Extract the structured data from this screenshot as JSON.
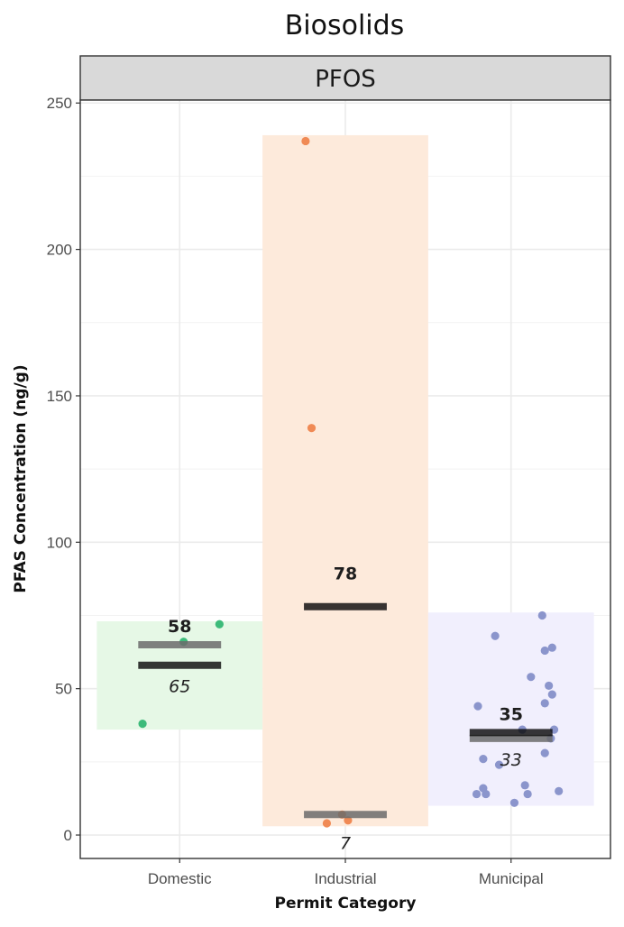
{
  "chart_data": {
    "type": "scatter",
    "title": "Biosolids",
    "facet": "PFOS",
    "xlabel": "Permit Category",
    "ylabel": "PFAS Concentration (ng/g)",
    "ylim": [
      -8,
      251
    ],
    "yticks": [
      0,
      50,
      100,
      150,
      200,
      250
    ],
    "grid": true,
    "legend": "none",
    "categories": [
      "Domestic",
      "Industrial",
      "Municipal"
    ],
    "groups": [
      {
        "category": "Domestic",
        "color": "#3dbb7a",
        "band_color": "#e6f8e6",
        "range": [
          36,
          73
        ],
        "mean": 58,
        "mean_label": "58",
        "median": 65,
        "median_label": "65",
        "points": [
          [
            -0.56,
            38
          ],
          [
            0.06,
            66
          ],
          [
            0.6,
            72
          ]
        ]
      },
      {
        "category": "Industrial",
        "color": "#f08a55",
        "band_color": "#fdeadb",
        "range": [
          3,
          239
        ],
        "mean": 78,
        "mean_label": "78",
        "median": 7,
        "median_label": "7",
        "points": [
          [
            -0.6,
            237
          ],
          [
            -0.51,
            139
          ],
          [
            -0.28,
            4
          ],
          [
            -0.05,
            7
          ],
          [
            0.04,
            5
          ]
        ]
      },
      {
        "category": "Municipal",
        "color": "#8b95cc",
        "band_color": "#f1effd",
        "range": [
          10,
          76
        ],
        "mean": 35,
        "mean_label": "35",
        "median": 33,
        "median_label": "33",
        "points": [
          [
            -0.24,
            68
          ],
          [
            0.47,
            75
          ],
          [
            0.62,
            64
          ],
          [
            0.51,
            63
          ],
          [
            0.62,
            48
          ],
          [
            0.3,
            54
          ],
          [
            0.57,
            51
          ],
          [
            0.51,
            45
          ],
          [
            -0.5,
            44
          ],
          [
            0.65,
            36
          ],
          [
            0.17,
            36
          ],
          [
            0.6,
            33
          ],
          [
            0.51,
            28
          ],
          [
            -0.42,
            26
          ],
          [
            -0.18,
            24
          ],
          [
            0.21,
            17
          ],
          [
            -0.42,
            16
          ],
          [
            0.72,
            15
          ],
          [
            -0.38,
            14
          ],
          [
            -0.52,
            14
          ],
          [
            0.25,
            14
          ],
          [
            0.05,
            11
          ]
        ]
      }
    ]
  }
}
